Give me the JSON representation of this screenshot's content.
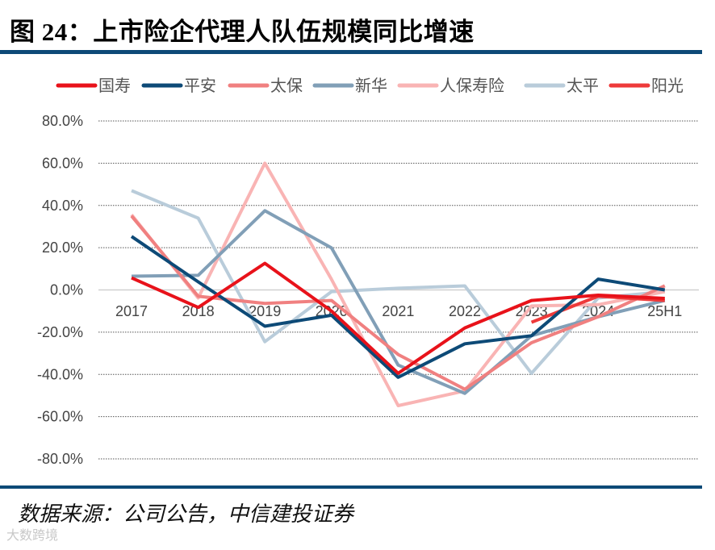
{
  "title": "图 24：上市险企代理人队伍规模同比增速",
  "source": "数据来源：公司公告，中信建投证券",
  "watermark": "大数跨境",
  "chart_data": {
    "type": "line",
    "title": "",
    "xlabel": "",
    "ylabel": "",
    "categories": [
      "2017",
      "2018",
      "2019",
      "2020",
      "2021",
      "2022",
      "2023",
      "2024",
      "25H1"
    ],
    "ylim": [
      -80,
      80
    ],
    "yticks": [
      80,
      60,
      40,
      20,
      0,
      -20,
      -40,
      -60,
      -80
    ],
    "ytick_labels": [
      "80.0%",
      "60.0%",
      "40.0%",
      "20.0%",
      "0.0%",
      "-20.0%",
      "-40.0%",
      "-60.0%",
      "-80.0%"
    ],
    "grid": "horizontal dotted",
    "legend_position": "top",
    "series": [
      {
        "name": "国寿",
        "color": "#e8121a",
        "values": [
          5.7,
          -8.3,
          12.6,
          -10,
          -39.5,
          -18,
          -5,
          -2.5,
          -4
        ]
      },
      {
        "name": "平安",
        "color": "#0d4a77",
        "values": [
          25.3,
          3.8,
          -17.2,
          -12,
          -41.4,
          -25.5,
          -21.7,
          5.1,
          0
        ]
      },
      {
        "name": "太保",
        "color": "#f08080",
        "values": [
          35,
          -3,
          -6.4,
          -5,
          -30.6,
          -47,
          -25,
          -12.7,
          2
        ]
      },
      {
        "name": "新华",
        "color": "#819fb7",
        "values": [
          6.5,
          6.9,
          37.5,
          19.9,
          -35.6,
          -49,
          -21.7,
          -12.7,
          -5
        ]
      },
      {
        "name": "人保寿险",
        "color": "#f9b4b4",
        "values": [
          35.6,
          -3.8,
          60,
          5,
          -54.8,
          -47.8,
          -7.6,
          -7,
          -0.8
        ]
      },
      {
        "name": "太平",
        "color": "#b9ccda",
        "values": [
          47,
          34,
          -24.5,
          -0.8,
          0.8,
          1.9,
          -39.5,
          -3.8,
          -0.8
        ]
      },
      {
        "name": "阳光",
        "color": "#ee3a3a",
        "values": [
          null,
          null,
          null,
          null,
          null,
          null,
          -15.3,
          -3,
          -5
        ]
      }
    ]
  }
}
